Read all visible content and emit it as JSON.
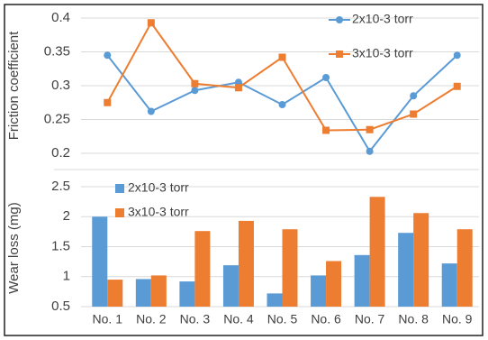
{
  "chart_data": [
    {
      "type": "line",
      "y_label": "Friction coefficient",
      "ylim": [
        0.2,
        0.4
      ],
      "yticks": [
        0.2,
        0.25,
        0.3,
        0.35,
        0.4
      ],
      "grid": true,
      "legend": "top-right",
      "series": [
        {
          "name": "2x10-3 torr",
          "color": "#5b9bd5",
          "values": [
            0.345,
            0.262,
            0.293,
            0.305,
            0.272,
            0.312,
            0.203,
            0.285,
            0.345
          ]
        },
        {
          "name": "3x10-3 torr",
          "color": "#ed7d31",
          "values": [
            0.275,
            0.393,
            0.303,
            0.297,
            0.342,
            0.234,
            0.235,
            0.258,
            0.299
          ]
        }
      ]
    },
    {
      "type": "bar",
      "y_label": "Wear loss (mg)",
      "categories": [
        "No. 1",
        "No. 2",
        "No. 3",
        "No. 4",
        "No. 5",
        "No. 6",
        "No. 7",
        "No. 8",
        "No. 9"
      ],
      "ylim": [
        0.5,
        2.5
      ],
      "yticks": [
        0.5,
        1,
        1.5,
        2,
        2.5
      ],
      "grid": true,
      "legend": "top-left",
      "series": [
        {
          "name": "2x10-3 torr",
          "color": "#5b9bd5",
          "values": [
            2.0,
            0.96,
            0.92,
            1.19,
            0.72,
            1.02,
            1.36,
            1.73,
            1.22
          ]
        },
        {
          "name": "3x10-3 torr",
          "color": "#ed7d31",
          "values": [
            0.95,
            1.02,
            1.76,
            1.93,
            1.79,
            1.26,
            2.33,
            2.06,
            1.79
          ]
        }
      ]
    }
  ]
}
